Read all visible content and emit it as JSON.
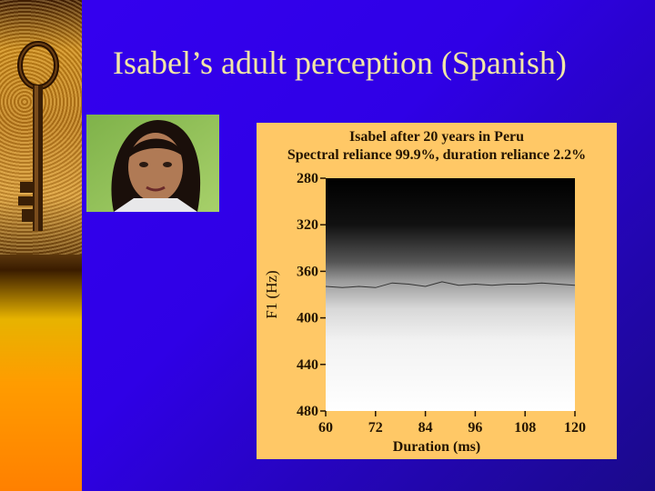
{
  "slide": {
    "title": "Isabel’s adult perception (Spanish)",
    "colors": {
      "background": "#3500f0",
      "title": "#f2e7a6",
      "chart_panel": "#ffc866"
    }
  },
  "decor": {
    "strip_image": "rusty-key-photo",
    "portrait_image": "woman-portrait-photo"
  },
  "chart_data": {
    "type": "heatmap",
    "title": "Isabel after 20 years in Peru",
    "subtitle": "Spectral reliance 99.9%, duration reliance 2.2%",
    "xlabel": "Duration (ms)",
    "ylabel": "F1 (Hz)",
    "xlim": [
      60,
      120
    ],
    "ylim": [
      480,
      280
    ],
    "x_ticks": [
      60,
      72,
      84,
      96,
      108,
      120
    ],
    "y_ticks": [
      280,
      320,
      360,
      400,
      440,
      480
    ],
    "boundary_series": {
      "x": [
        60,
        64,
        68,
        72,
        76,
        80,
        84,
        88,
        92,
        96,
        100,
        104,
        108,
        112,
        116,
        120
      ],
      "y": [
        373,
        374,
        373,
        374,
        370,
        371,
        373,
        369,
        372,
        371,
        372,
        371,
        371,
        370,
        371,
        372
      ]
    },
    "shading": "dark above boundary (low F1), light below (high F1)"
  }
}
